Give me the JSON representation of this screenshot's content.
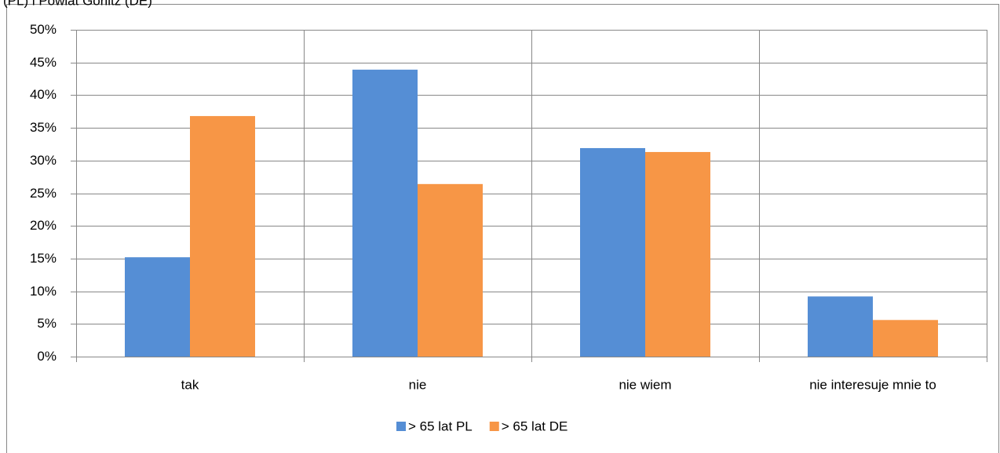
{
  "chart_data": {
    "type": "bar",
    "title": "(PL) i Powiat Görlitz (DE)",
    "categories": [
      "tak",
      "nie",
      "nie wiem",
      "nie interesuje mnie to"
    ],
    "series": [
      {
        "name": "> 65 lat PL",
        "color": "#558ed5",
        "values": [
          15.2,
          43.9,
          31.9,
          9.2
        ]
      },
      {
        "name": "> 65 lat DE",
        "color": "#f79646",
        "values": [
          36.8,
          26.4,
          31.3,
          5.6
        ]
      }
    ],
    "ylim": [
      0,
      50
    ],
    "yticks": [
      {
        "value": 0,
        "label": "0%"
      },
      {
        "value": 5,
        "label": "5%"
      },
      {
        "value": 10,
        "label": "10%"
      },
      {
        "value": 15,
        "label": "15%"
      },
      {
        "value": 20,
        "label": "20%"
      },
      {
        "value": 25,
        "label": "25%"
      },
      {
        "value": 30,
        "label": "30%"
      },
      {
        "value": 35,
        "label": "35%"
      },
      {
        "value": 40,
        "label": "40%"
      },
      {
        "value": 45,
        "label": "45%"
      },
      {
        "value": 50,
        "label": "50%"
      }
    ],
    "grid": true,
    "legend": "bottom"
  }
}
